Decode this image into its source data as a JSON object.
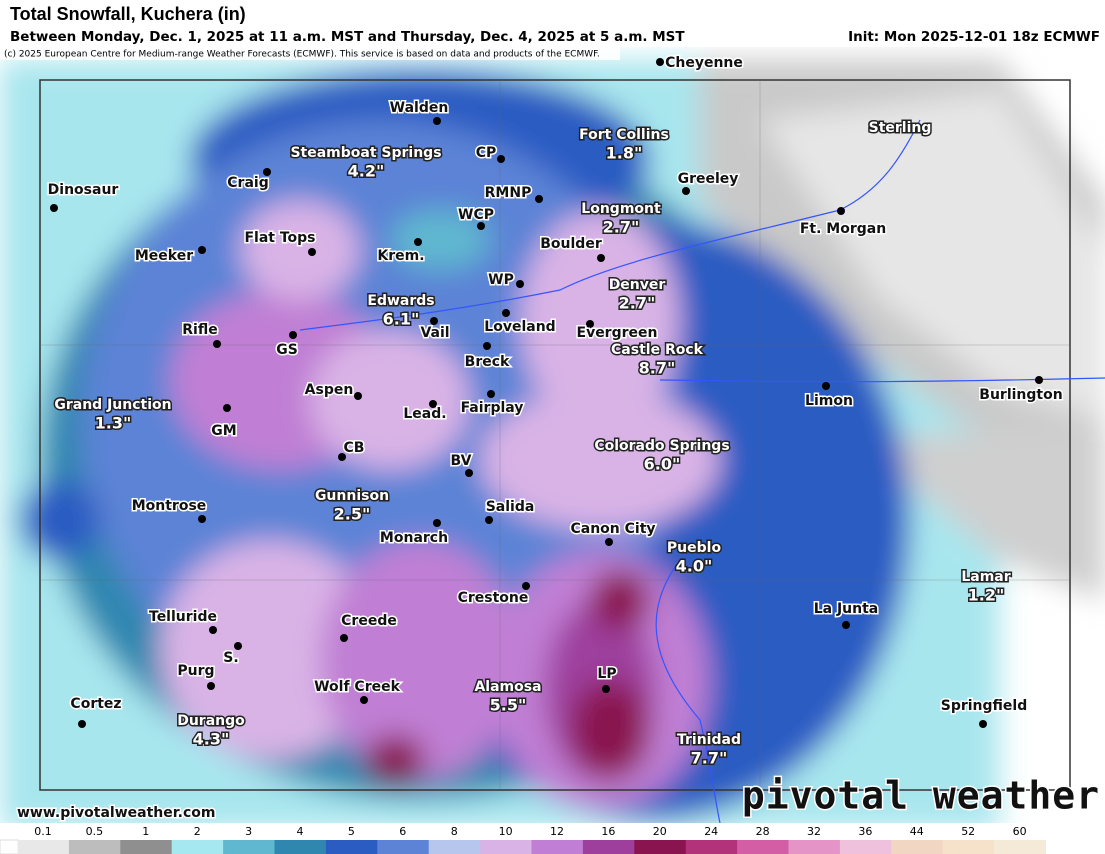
{
  "header": {
    "title": "Total Snowfall, Kuchera (in)",
    "subtitle": "Between Monday, Dec. 1, 2025 at 11 a.m. MST and Thursday, Dec. 4, 2025 at 5 a.m. MST",
    "init": "Init: Mon 2025-12-01 18z ECMWF",
    "credit": "(c) 2025 European Centre for Medium-range Weather Forecasts (ECMWF). This service is based on data and products of the ECMWF."
  },
  "places": [
    {
      "name": "Cheyenne"
    },
    {
      "name": "Walden"
    },
    {
      "name": "CP"
    },
    {
      "name": "Fort Collins",
      "amount": "1.8\""
    },
    {
      "name": "Steamboat Springs",
      "amount": "4.2\""
    },
    {
      "name": "Craig"
    },
    {
      "name": "Sterling"
    },
    {
      "name": "Greeley"
    },
    {
      "name": "Dinosaur"
    },
    {
      "name": "RMNP"
    },
    {
      "name": "WCP"
    },
    {
      "name": "Longmont",
      "amount": "2.7\""
    },
    {
      "name": "Ft. Morgan"
    },
    {
      "name": "Flat Tops"
    },
    {
      "name": "Meeker"
    },
    {
      "name": "Krem."
    },
    {
      "name": "Boulder"
    },
    {
      "name": "WP"
    },
    {
      "name": "Denver",
      "amount": "2.7\""
    },
    {
      "name": "Edwards",
      "amount": "6.1\""
    },
    {
      "name": "Vail"
    },
    {
      "name": "Loveland"
    },
    {
      "name": "Evergreen"
    },
    {
      "name": "Rifle"
    },
    {
      "name": "GS"
    },
    {
      "name": "Castle Rock",
      "amount": "8.7\""
    },
    {
      "name": "Breck"
    },
    {
      "name": "Limon"
    },
    {
      "name": "Burlington"
    },
    {
      "name": "Aspen"
    },
    {
      "name": "Lead."
    },
    {
      "name": "Fairplay"
    },
    {
      "name": "Grand Junction",
      "amount": "1.3\""
    },
    {
      "name": "GM"
    },
    {
      "name": "Colorado Springs",
      "amount": "6.0\""
    },
    {
      "name": "CB"
    },
    {
      "name": "BV"
    },
    {
      "name": "Gunnison",
      "amount": "2.5\""
    },
    {
      "name": "Montrose"
    },
    {
      "name": "Salida"
    },
    {
      "name": "Monarch"
    },
    {
      "name": "Canon City"
    },
    {
      "name": "Pueblo",
      "amount": "4.0\""
    },
    {
      "name": "Lamar",
      "amount": "1.2\""
    },
    {
      "name": "Crestone"
    },
    {
      "name": "La Junta"
    },
    {
      "name": "Telluride"
    },
    {
      "name": "Creede"
    },
    {
      "name": "S."
    },
    {
      "name": "Purg"
    },
    {
      "name": "LP"
    },
    {
      "name": "Wolf Creek"
    },
    {
      "name": "Alamosa",
      "amount": "5.5\""
    },
    {
      "name": "Springfield"
    },
    {
      "name": "Cortez"
    },
    {
      "name": "Durango",
      "amount": "4.3\""
    },
    {
      "name": "Trinidad",
      "amount": "7.7\""
    }
  ],
  "footer": {
    "website": "www.pivotalweather.com",
    "logo": "pivotal weather"
  },
  "legend": {
    "labels": [
      "0.1",
      "0.5",
      "1",
      "2",
      "3",
      "4",
      "5",
      "6",
      "8",
      "10",
      "12",
      "16",
      "20",
      "24",
      "28",
      "32",
      "36",
      "44",
      "52",
      "60"
    ],
    "colors": [
      "#e8e8e8",
      "#bdbdbd",
      "#8f8f8f",
      "#a6e8ef",
      "#5fb8cf",
      "#2f87b0",
      "#2a5cc2",
      "#5c83d6",
      "#b6c6ec",
      "#d9b3e6",
      "#c07fd4",
      "#9e3f9e",
      "#8a1450",
      "#b3337a",
      "#d35ea6",
      "#e594c8",
      "#f0c1dc",
      "#f1d6c3",
      "#f6e2cb",
      "#f5ead8"
    ]
  }
}
